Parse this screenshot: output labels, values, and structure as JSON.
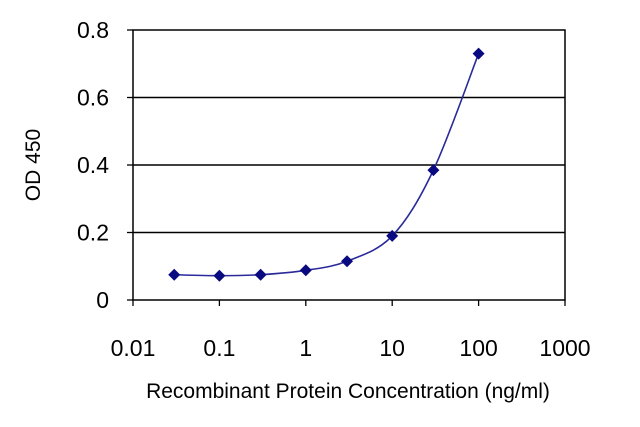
{
  "chart_data": {
    "type": "line",
    "title": "",
    "xlabel": "Recombinant Protein Concentration (ng/ml)",
    "ylabel": "OD 450",
    "x_scale": "log",
    "xlim": [
      0.01,
      1000
    ],
    "ylim": [
      0,
      0.8
    ],
    "x_ticks": [
      "0.01",
      "0.1",
      "1",
      "10",
      "100",
      "1000"
    ],
    "y_ticks": [
      "0",
      "0.2",
      "0.4",
      "0.6",
      "0.8"
    ],
    "grid": "horizontal",
    "legend": "none",
    "series": [
      {
        "x": [
          0.03,
          0.1,
          0.3,
          1,
          3,
          10,
          30,
          100
        ],
        "y": [
          0.075,
          0.072,
          0.075,
          0.088,
          0.115,
          0.19,
          0.385,
          0.73
        ]
      }
    ],
    "colors": {
      "line": "#2a2a9a",
      "marker": "#0a0a80",
      "grid": "#000000",
      "frame": "#000000"
    }
  }
}
